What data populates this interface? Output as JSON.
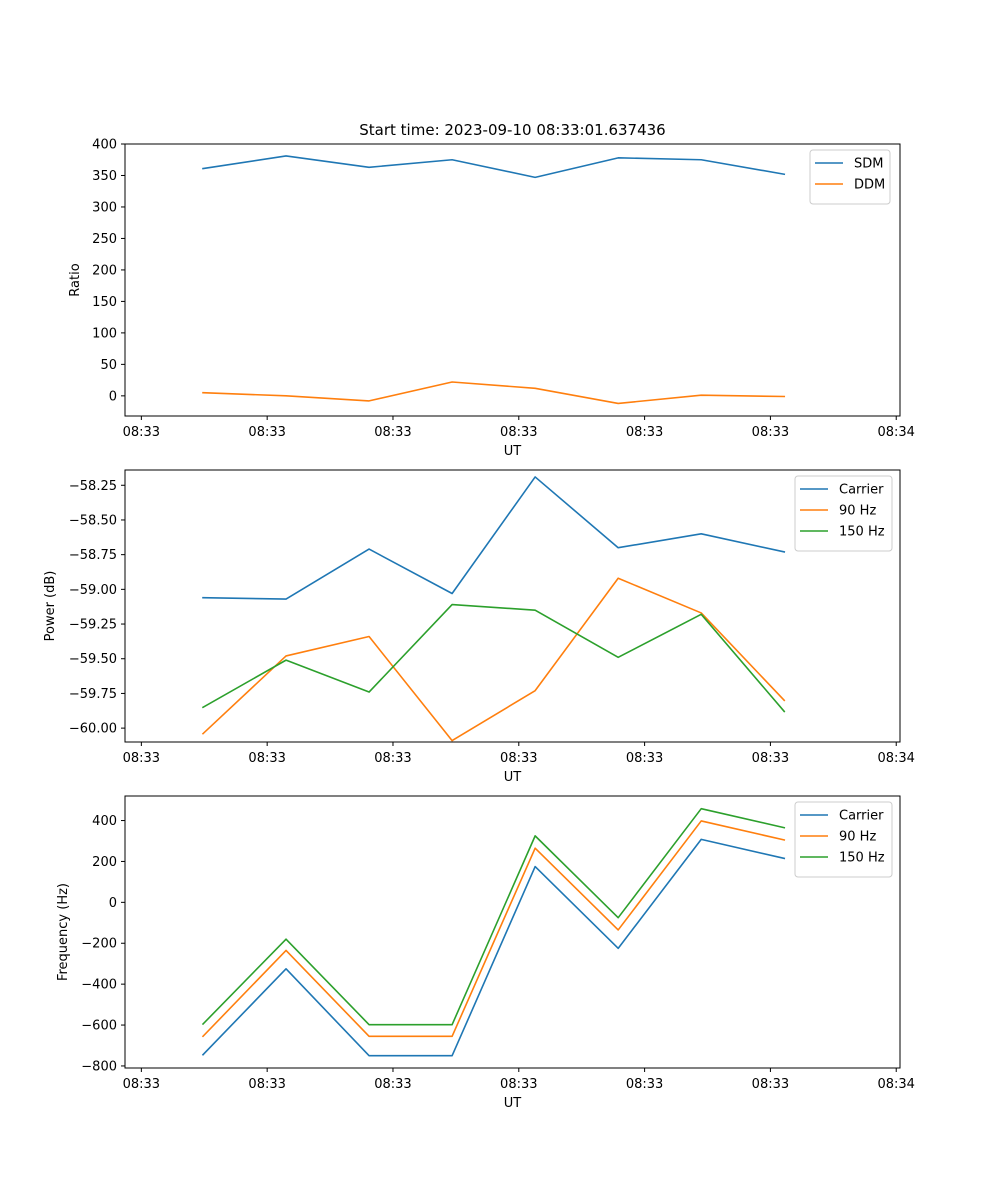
{
  "figure": {
    "title": "Start time: 2023-09-10 08:33:01.637436"
  },
  "chart_data": [
    {
      "type": "line",
      "title": "Start time: 2023-09-10 08:33:01.637436",
      "xlabel": "UT",
      "ylabel": "Ratio",
      "x_tick_labels": [
        "08:33",
        "08:33",
        "08:33",
        "08:33",
        "08:33",
        "08:33",
        "08:34"
      ],
      "x_tick_positions": [
        0,
        1,
        2,
        3,
        4,
        5,
        6
      ],
      "xlim": [
        -0.13,
        6.03
      ],
      "x": [
        0.49,
        1.15,
        1.81,
        2.47,
        3.13,
        3.79,
        4.45,
        5.11
      ],
      "ylim": [
        -32,
        400
      ],
      "yticks": [
        0,
        50,
        100,
        150,
        200,
        250,
        300,
        350,
        400
      ],
      "legend_position": "top-right",
      "series": [
        {
          "name": "SDM",
          "color": "#1f77b4",
          "values": [
            361,
            381,
            363,
            375,
            347,
            378,
            375,
            352
          ]
        },
        {
          "name": "DDM",
          "color": "#ff7f0e",
          "values": [
            5,
            0,
            -8,
            22,
            12,
            -12,
            1,
            -1
          ]
        }
      ]
    },
    {
      "type": "line",
      "title": "",
      "xlabel": "UT",
      "ylabel": "Power (dB)",
      "x_tick_labels": [
        "08:33",
        "08:33",
        "08:33",
        "08:33",
        "08:33",
        "08:33",
        "08:34"
      ],
      "x_tick_positions": [
        0,
        1,
        2,
        3,
        4,
        5,
        6
      ],
      "xlim": [
        -0.13,
        6.03
      ],
      "x": [
        0.49,
        1.15,
        1.81,
        2.47,
        3.13,
        3.79,
        4.45,
        5.11
      ],
      "ylim": [
        -60.1,
        -58.14
      ],
      "yticks": [
        -60.0,
        -59.75,
        -59.5,
        -59.25,
        -59.0,
        -58.75,
        -58.5,
        -58.25
      ],
      "ytick_labels": [
        "−60.00",
        "−59.75",
        "−59.50",
        "−59.25",
        "−59.00",
        "−58.75",
        "−58.50",
        "−58.25"
      ],
      "legend_position": "top-right",
      "series": [
        {
          "name": "Carrier",
          "color": "#1f77b4",
          "values": [
            -59.06,
            -59.07,
            -58.71,
            -59.03,
            -58.19,
            -58.7,
            -58.6,
            -58.73
          ]
        },
        {
          "name": "90 Hz",
          "color": "#ff7f0e",
          "values": [
            -60.04,
            -59.48,
            -59.34,
            -60.09,
            -59.73,
            -58.92,
            -59.17,
            -59.8
          ]
        },
        {
          "name": "150 Hz",
          "color": "#2ca02c",
          "values": [
            -59.85,
            -59.51,
            -59.74,
            -59.11,
            -59.15,
            -59.49,
            -59.18,
            -59.88
          ]
        }
      ]
    },
    {
      "type": "line",
      "title": "",
      "xlabel": "UT",
      "ylabel": "Frequency (Hz)",
      "x_tick_labels": [
        "08:33",
        "08:33",
        "08:33",
        "08:33",
        "08:33",
        "08:33",
        "08:34"
      ],
      "x_tick_positions": [
        0,
        1,
        2,
        3,
        4,
        5,
        6
      ],
      "xlim": [
        -0.13,
        6.03
      ],
      "x": [
        0.49,
        1.15,
        1.81,
        2.47,
        3.13,
        3.79,
        4.45,
        5.11
      ],
      "ylim": [
        -810,
        520
      ],
      "yticks": [
        -800,
        -600,
        -400,
        -200,
        0,
        200,
        400
      ],
      "ytick_labels": [
        "−800",
        "−600",
        "−400",
        "−200",
        "0",
        "200",
        "400"
      ],
      "legend_position": "top-right",
      "series": [
        {
          "name": "Carrier",
          "color": "#1f77b4",
          "values": [
            -745,
            -325,
            -750,
            -750,
            175,
            -225,
            308,
            215
          ]
        },
        {
          "name": "90 Hz",
          "color": "#ff7f0e",
          "values": [
            -655,
            -235,
            -655,
            -655,
            265,
            -135,
            398,
            305
          ]
        },
        {
          "name": "150 Hz",
          "color": "#2ca02c",
          "values": [
            -595,
            -180,
            -598,
            -598,
            325,
            -75,
            458,
            365
          ]
        }
      ]
    }
  ]
}
